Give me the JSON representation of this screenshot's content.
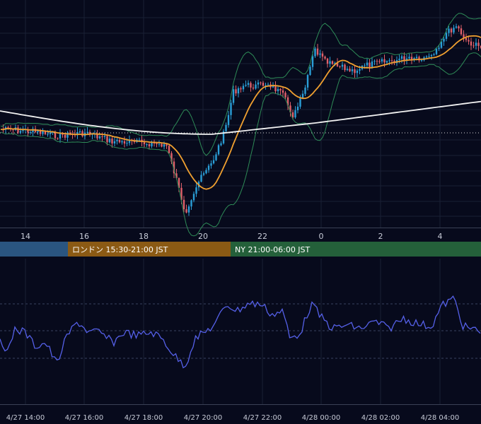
{
  "chart_data": [
    {
      "type": "candlestick",
      "x_ticks": [
        "14",
        "16",
        "18",
        "20",
        "22",
        "0",
        "2",
        "4"
      ],
      "candle_color_up": "#2a9fd8",
      "candle_color_down": "#e0606a",
      "overlays": [
        {
          "kind": "moving-average",
          "color": "#f0a030"
        },
        {
          "kind": "moving-average",
          "color": "#f2f2f2"
        },
        {
          "kind": "bollinger-bands",
          "color": "#2e8b57"
        }
      ],
      "reference_line_style": "dotted"
    },
    {
      "type": "band",
      "sessions": [
        {
          "label": "",
          "color": "#2a5580"
        },
        {
          "label": "ロンドン 15:30-21:00 JST",
          "color": "#8b5a14"
        },
        {
          "label": "NY 21:00-06:00 JST",
          "color": "#24603a"
        }
      ]
    },
    {
      "type": "line",
      "series_color": "#5560e8",
      "x_ticks": [
        "4/27 14:00",
        "4/27 16:00",
        "4/27 18:00",
        "4/27 20:00",
        "4/27 22:00",
        "4/28 00:00",
        "4/28 02:00",
        "4/28 04:00"
      ],
      "levels": [
        "upper",
        "middle",
        "lower"
      ]
    }
  ]
}
